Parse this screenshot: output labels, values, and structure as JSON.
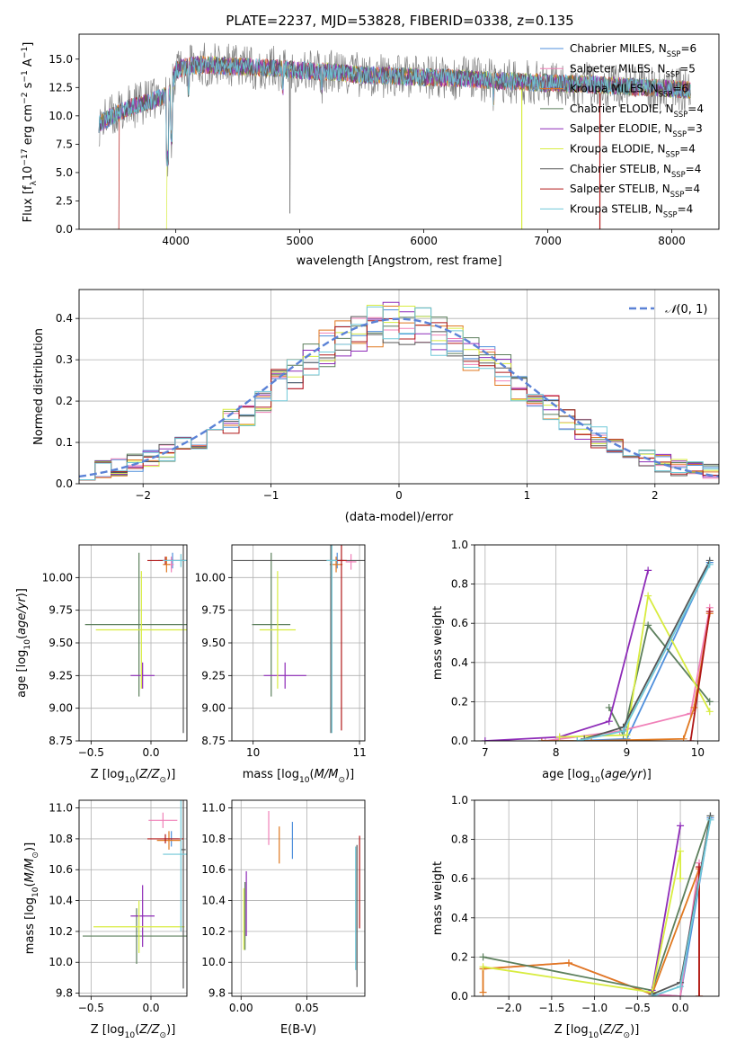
{
  "figure": {
    "title": "PLATE=2237, MJD=53828, FIBERID=0338, z=0.135"
  },
  "colors": {
    "Chabrier MILES": "#4f8fdc",
    "Salpeter MILES": "#f080b8",
    "Kroupa MILES": "#e07820",
    "Chabrier ELODIE": "#5c7f5c",
    "Salpeter ELODIE": "#8e2bb8",
    "Kroupa ELODIE": "#d8ec40",
    "Chabrier STELIB": "#555555",
    "Salpeter STELIB": "#b01818",
    "Kroupa STELIB": "#70c8d8",
    "data": "#808080",
    "normal": "#5b82d6",
    "grid": "#b0b0b0"
  },
  "chart_data": [
    {
      "id": "spectrum",
      "type": "line",
      "xlabel": "wavelength [Angstrom, rest frame]",
      "ylabel": "Flux [f_λ 10^-17 erg cm^-2 s^-1 A^-1]",
      "xlim": [
        3220,
        8380
      ],
      "ylim": [
        0,
        17.2
      ],
      "xticks": [
        4000,
        5000,
        6000,
        7000,
        8000
      ],
      "yticks": [
        0.0,
        2.5,
        5.0,
        7.5,
        10.0,
        12.5,
        15.0
      ],
      "grid": false,
      "legend_position": "right",
      "legend": [
        {
          "name": "Chabrier MILES",
          "nssp": "6"
        },
        {
          "name": "Salpeter MILES",
          "nssp": "5"
        },
        {
          "name": "Kroupa MILES",
          "nssp": "6"
        },
        {
          "name": "Chabrier ELODIE",
          "nssp": "4"
        },
        {
          "name": "Salpeter ELODIE",
          "nssp": "3"
        },
        {
          "name": "Kroupa ELODIE",
          "nssp": "4"
        },
        {
          "name": "Chabrier STELIB",
          "nssp": "4"
        },
        {
          "name": "Salpeter STELIB",
          "nssp": "4"
        },
        {
          "name": "Kroupa STELIB",
          "nssp": "4"
        }
      ],
      "continuum": {
        "x": [
          3380,
          3480,
          3600,
          3700,
          3800,
          3900,
          3950,
          4000,
          4100,
          4200,
          4400,
          4600,
          4800,
          5000,
          5200,
          5500,
          5800,
          6000,
          6300,
          6600,
          6800,
          7000,
          7300,
          7600,
          8000,
          8150
        ],
        "y": [
          9.3,
          9.9,
          10.6,
          11.0,
          11.3,
          11.7,
          11.9,
          14.0,
          14.4,
          14.5,
          14.4,
          14.3,
          14.2,
          14.0,
          13.9,
          13.6,
          13.5,
          13.4,
          13.3,
          13.1,
          13.0,
          12.9,
          12.8,
          12.6,
          12.4,
          12.3
        ]
      }
    },
    {
      "id": "residuals",
      "type": "line",
      "xlabel": "(data-model)/error",
      "ylabel": "Normed distribution",
      "xlim": [
        -2.5,
        2.5
      ],
      "ylim": [
        0,
        0.47
      ],
      "xticks": [
        -2,
        -1,
        0,
        1,
        2
      ],
      "yticks": [
        0.0,
        0.1,
        0.2,
        0.3,
        0.4
      ],
      "grid": true,
      "legend": [
        "𝒩(0,1)"
      ],
      "bins": [
        -2.5,
        2.5,
        40
      ],
      "hist_base": [
        0.03,
        0.035,
        0.04,
        0.05,
        0.06,
        0.075,
        0.09,
        0.11,
        0.13,
        0.15,
        0.17,
        0.2,
        0.24,
        0.27,
        0.3,
        0.33,
        0.35,
        0.37,
        0.38,
        0.39,
        0.39,
        0.38,
        0.36,
        0.34,
        0.32,
        0.3,
        0.27,
        0.24,
        0.21,
        0.18,
        0.15,
        0.13,
        0.11,
        0.09,
        0.075,
        0.06,
        0.05,
        0.04,
        0.035,
        0.03
      ]
    },
    {
      "id": "age-vs-Z",
      "type": "scatter",
      "xlabel": "Z [log10(Z/Z☉)]",
      "ylabel": "age  [log10(age/yr)]",
      "xlim": [
        -0.6,
        0.3
      ],
      "ylim": [
        8.75,
        10.25
      ],
      "xticks": [
        -0.5,
        0.0
      ],
      "yticks": [
        8.75,
        9.0,
        9.25,
        9.5,
        9.75,
        10.0
      ],
      "grid": true,
      "points": [
        {
          "model": "Chabrier MILES",
          "x": 0.18,
          "y": 10.13,
          "xe": 0.12,
          "ye": 0.06
        },
        {
          "model": "Salpeter MILES",
          "x": 0.17,
          "y": 10.1,
          "xe": 0.02,
          "ye": 0.06
        },
        {
          "model": "Kroupa MILES",
          "x": 0.13,
          "y": 10.1,
          "xe": 0.03,
          "ye": 0.06
        },
        {
          "model": "Chabrier ELODIE",
          "x": -0.1,
          "y": 9.64,
          "xe": 0.45,
          "ye": 0.55
        },
        {
          "model": "Salpeter ELODIE",
          "x": -0.07,
          "y": 9.25,
          "xe": 0.1,
          "ye": 0.1
        },
        {
          "model": "Kroupa ELODIE",
          "x": -0.08,
          "y": 9.6,
          "xe": 0.38,
          "ye": 0.45
        },
        {
          "model": "Chabrier STELIB",
          "x": 0.27,
          "y": 10.13,
          "xe": 0.02,
          "ye": 1.32
        },
        {
          "model": "Salpeter STELIB",
          "x": 0.12,
          "y": 10.13,
          "xe": 0.15,
          "ye": 0.03
        },
        {
          "model": "Kroupa STELIB",
          "x": 0.25,
          "y": 10.13,
          "xe": 0.15,
          "ye": 0.05
        }
      ]
    },
    {
      "id": "age-vs-mass",
      "type": "scatter",
      "xlabel": "mass [log10(M/M☉)]",
      "ylabel": "",
      "xlim": [
        9.8,
        11.05
      ],
      "ylim": [
        8.75,
        10.25
      ],
      "xticks": [
        10,
        11
      ],
      "yticks": [
        8.75,
        9.0,
        9.25,
        9.5,
        9.75,
        10.0
      ],
      "grid": true,
      "points": [
        {
          "model": "Chabrier MILES",
          "x": 10.79,
          "y": 10.13,
          "xe": 0.06,
          "ye": 0.06
        },
        {
          "model": "Salpeter MILES",
          "x": 10.92,
          "y": 10.12,
          "xe": 0.05,
          "ye": 0.06
        },
        {
          "model": "Kroupa MILES",
          "x": 10.78,
          "y": 10.1,
          "xe": 0.06,
          "ye": 0.06
        },
        {
          "model": "Chabrier ELODIE",
          "x": 10.17,
          "y": 9.64,
          "xe": 0.18,
          "ye": 0.55
        },
        {
          "model": "Salpeter ELODIE",
          "x": 10.3,
          "y": 9.25,
          "xe": 0.2,
          "ye": 0.1
        },
        {
          "model": "Kroupa ELODIE",
          "x": 10.23,
          "y": 9.6,
          "xe": 0.17,
          "ye": 0.45
        },
        {
          "model": "Chabrier STELIB",
          "x": 10.73,
          "y": 10.13,
          "xe": 0.92,
          "ye": 1.32
        },
        {
          "model": "Salpeter STELIB",
          "x": 10.83,
          "y": 10.13,
          "xe": 0.05,
          "ye": 1.3
        },
        {
          "model": "Kroupa STELIB",
          "x": 10.74,
          "y": 10.13,
          "xe": 0.05,
          "ye": 1.32
        }
      ]
    },
    {
      "id": "weight-vs-age",
      "type": "line",
      "xlabel": "age  [log10(age/yr)]",
      "ylabel": "mass weight",
      "xlim": [
        6.85,
        10.3
      ],
      "ylim": [
        0,
        1.0
      ],
      "xticks": [
        7,
        8,
        9,
        10
      ],
      "yticks": [
        0.0,
        0.2,
        0.4,
        0.6,
        0.8,
        1.0
      ],
      "grid": true,
      "series": [
        {
          "model": "Chabrier MILES",
          "x": [
            7.8,
            8.3,
            9.0,
            10.17
          ],
          "y": [
            0.0,
            0.0,
            0.01,
            0.91
          ]
        },
        {
          "model": "Salpeter MILES",
          "x": [
            7.85,
            8.9,
            9.9,
            10.17
          ],
          "y": [
            0.0,
            0.05,
            0.14,
            0.68
          ]
        },
        {
          "model": "Kroupa MILES",
          "x": [
            7.8,
            8.5,
            9.8,
            9.95,
            10.17
          ],
          "y": [
            0.0,
            0.0,
            0.01,
            0.17,
            0.65
          ]
        },
        {
          "model": "Chabrier ELODIE",
          "x": [
            8.75,
            8.95,
            9.3,
            10.17
          ],
          "y": [
            0.17,
            0.03,
            0.59,
            0.2
          ]
        },
        {
          "model": "Salpeter ELODIE",
          "x": [
            7.0,
            8.05,
            8.75,
            9.3
          ],
          "y": [
            0.0,
            0.02,
            0.1,
            0.87
          ]
        },
        {
          "model": "Kroupa ELODIE",
          "x": [
            8.05,
            9.0,
            9.3,
            10.17
          ],
          "y": [
            0.02,
            0.03,
            0.74,
            0.15
          ]
        },
        {
          "model": "Chabrier STELIB",
          "x": [
            8.4,
            8.95,
            10.17
          ],
          "y": [
            0.01,
            0.07,
            0.92
          ]
        },
        {
          "model": "Salpeter STELIB",
          "x": [
            9.9,
            10.17
          ],
          "y": [
            0.0,
            0.66
          ]
        },
        {
          "model": "Kroupa STELIB",
          "x": [
            8.3,
            8.95,
            10.17
          ],
          "y": [
            0.0,
            0.05,
            0.9
          ]
        }
      ]
    },
    {
      "id": "mass-vs-Z",
      "type": "scatter",
      "xlabel": "Z [log10(Z/Z☉)]",
      "ylabel": "mass [log10(M/M☉)]",
      "xlim": [
        -0.6,
        0.3
      ],
      "ylim": [
        9.78,
        11.05
      ],
      "xticks": [
        -0.5,
        0.0
      ],
      "yticks": [
        9.8,
        10.0,
        10.2,
        10.4,
        10.6,
        10.8,
        11.0
      ],
      "grid": true,
      "points": [
        {
          "model": "Chabrier MILES",
          "x": 0.17,
          "y": 10.8,
          "xe": 0.06,
          "ye": 0.05
        },
        {
          "model": "Salpeter MILES",
          "x": 0.1,
          "y": 10.92,
          "xe": 0.12,
          "ye": 0.05
        },
        {
          "model": "Kroupa MILES",
          "x": 0.15,
          "y": 10.79,
          "xe": 0.1,
          "ye": 0.06
        },
        {
          "model": "Chabrier ELODIE",
          "x": -0.12,
          "y": 10.17,
          "xe": 0.45,
          "ye": 0.18
        },
        {
          "model": "Salpeter ELODIE",
          "x": -0.07,
          "y": 10.3,
          "xe": 0.1,
          "ye": 0.2
        },
        {
          "model": "Kroupa ELODIE",
          "x": -0.1,
          "y": 10.23,
          "xe": 0.38,
          "ye": 0.17
        },
        {
          "model": "Chabrier STELIB",
          "x": 0.27,
          "y": 10.73,
          "xe": 0.02,
          "ye": 0.9
        },
        {
          "model": "Salpeter STELIB",
          "x": 0.12,
          "y": 10.8,
          "xe": 0.15,
          "ye": 0.03
        },
        {
          "model": "Kroupa STELIB",
          "x": 0.25,
          "y": 10.7,
          "xe": 0.15,
          "ye": 0.5
        }
      ]
    },
    {
      "id": "mass-vs-EBV",
      "type": "scatter",
      "xlabel": "E(B-V)",
      "ylabel": "",
      "xlim": [
        -0.007,
        0.094
      ],
      "ylim": [
        9.78,
        11.05
      ],
      "xticks": [
        0.0,
        0.05
      ],
      "yticks": [
        9.8,
        10.0,
        10.2,
        10.4,
        10.6,
        10.8,
        11.0
      ],
      "grid": true,
      "points": [
        {
          "model": "Chabrier MILES",
          "x": 0.039,
          "y": 10.79,
          "xe": 0.0,
          "ye": 0.12
        },
        {
          "model": "Salpeter MILES",
          "x": 0.021,
          "y": 10.87,
          "xe": 0.0,
          "ye": 0.11
        },
        {
          "model": "Kroupa MILES",
          "x": 0.029,
          "y": 10.76,
          "xe": 0.0,
          "ye": 0.12
        },
        {
          "model": "Chabrier ELODIE",
          "x": 0.003,
          "y": 10.3,
          "xe": 0.0,
          "ye": 0.22
        },
        {
          "model": "Salpeter ELODIE",
          "x": 0.004,
          "y": 10.38,
          "xe": 0.0,
          "ye": 0.21
        },
        {
          "model": "Kroupa ELODIE",
          "x": 0.002,
          "y": 10.28,
          "xe": 0.0,
          "ye": 0.2
        },
        {
          "model": "Chabrier STELIB",
          "x": 0.088,
          "y": 10.3,
          "xe": 0.0,
          "ye": 0.46
        },
        {
          "model": "Salpeter STELIB",
          "x": 0.09,
          "y": 10.52,
          "xe": 0.0,
          "ye": 0.3
        },
        {
          "model": "Kroupa STELIB",
          "x": 0.087,
          "y": 10.35,
          "xe": 0.0,
          "ye": 0.4
        }
      ]
    },
    {
      "id": "weight-vs-Z",
      "type": "line",
      "xlabel": "Z [log10(Z/Z☉)]",
      "ylabel": "mass weight",
      "xlim": [
        -2.4,
        0.45
      ],
      "ylim": [
        0,
        1.0
      ],
      "xticks": [
        -2.0,
        -1.5,
        -1.0,
        -0.5,
        0.0
      ],
      "yticks": [
        0.0,
        0.2,
        0.4,
        0.6,
        0.8,
        1.0
      ],
      "grid": true,
      "series": [
        {
          "model": "Chabrier MILES",
          "x": [
            -0.33,
            0.0,
            0.35
          ],
          "y": [
            0.01,
            0.0,
            0.91
          ]
        },
        {
          "model": "Salpeter MILES",
          "x": [
            -2.3,
            -1.3,
            -0.33,
            0.0,
            0.22
          ],
          "y": [
            0.14,
            0.17,
            0.01,
            0.0,
            0.68
          ]
        },
        {
          "model": "Kroupa MILES",
          "x": [
            -2.3,
            -2.3,
            -1.3,
            -0.33,
            0.22,
            0.22
          ],
          "y": [
            0.02,
            0.14,
            0.17,
            0.01,
            0.65,
            0.0
          ]
        },
        {
          "model": "Chabrier ELODIE",
          "x": [
            -2.3,
            -0.33,
            0.35
          ],
          "y": [
            0.2,
            0.03,
            0.92
          ]
        },
        {
          "model": "Salpeter ELODIE",
          "x": [
            -0.33,
            0.0
          ],
          "y": [
            0.03,
            0.87
          ]
        },
        {
          "model": "Kroupa ELODIE",
          "x": [
            -2.3,
            -0.33,
            0.0,
            0.0
          ],
          "y": [
            0.15,
            0.02,
            0.74,
            0.6
          ]
        },
        {
          "model": "Chabrier STELIB",
          "x": [
            -0.33,
            0.0,
            0.35
          ],
          "y": [
            0.01,
            0.07,
            0.92
          ]
        },
        {
          "model": "Salpeter STELIB",
          "x": [
            0.22,
            0.22
          ],
          "y": [
            0.0,
            0.66
          ]
        },
        {
          "model": "Kroupa STELIB",
          "x": [
            -0.33,
            0.0,
            0.35
          ],
          "y": [
            0.0,
            0.05,
            0.9
          ]
        }
      ]
    }
  ]
}
